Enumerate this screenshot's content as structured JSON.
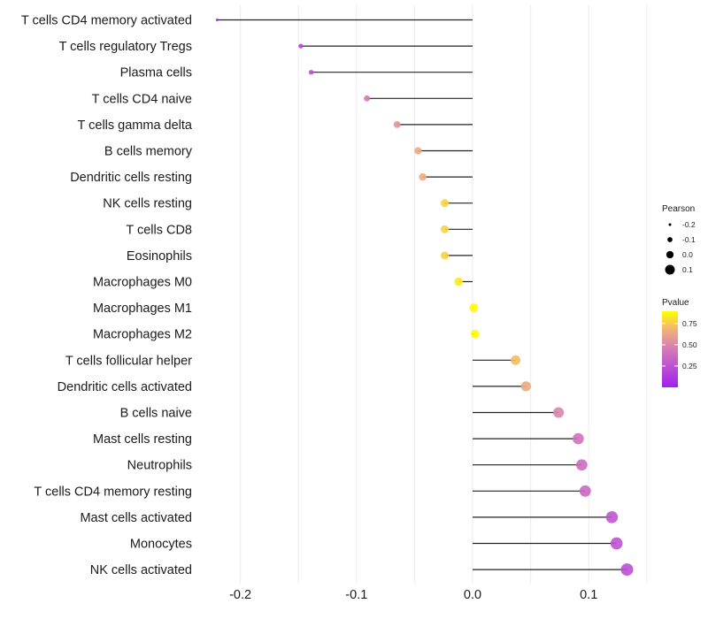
{
  "chart_data": {
    "type": "lollipop",
    "title": "",
    "xlabel": "",
    "ylabel": "",
    "xlim": [
      -0.225,
      0.15
    ],
    "x_ticks": [
      -0.2,
      -0.1,
      0.0,
      0.1
    ],
    "x_tick_labels": [
      "-0.2",
      "-0.1",
      "0.0",
      "0.1"
    ],
    "grid": true,
    "baseline": 0.0,
    "categories": [
      "T cells CD4 memory activated",
      "T cells regulatory  Tregs ",
      "Plasma cells",
      "T cells CD4 naive",
      "T cells gamma delta",
      "B cells memory",
      "Dendritic cells resting",
      "NK cells resting",
      "T cells CD8",
      "Eosinophils",
      "Macrophages M0",
      "Macrophages M1",
      "Macrophages M2",
      "T cells follicular helper",
      "Dendritic cells activated",
      "B cells naive",
      "Mast cells resting",
      "Neutrophils",
      "T cells CD4 memory resting",
      "Mast cells activated",
      "Monocytes",
      "NK cells activated"
    ],
    "series": [
      {
        "name": "Pearson",
        "values": [
          -0.22,
          -0.148,
          -0.139,
          -0.091,
          -0.065,
          -0.047,
          -0.043,
          -0.024,
          -0.024,
          -0.024,
          -0.012,
          0.001,
          0.002,
          0.037,
          0.046,
          0.074,
          0.091,
          0.094,
          0.097,
          0.12,
          0.124,
          0.133
        ]
      },
      {
        "name": "Pvalue",
        "values": [
          0.02,
          0.2,
          0.25,
          0.5,
          0.62,
          0.72,
          0.73,
          0.86,
          0.86,
          0.86,
          0.93,
          0.99,
          0.99,
          0.79,
          0.72,
          0.55,
          0.45,
          0.42,
          0.4,
          0.3,
          0.29,
          0.26
        ]
      }
    ],
    "legends": {
      "size": {
        "title": "Pearson",
        "labels": [
          "-0.2",
          "-0.1",
          "0.0",
          "0.1"
        ],
        "values": [
          -0.2,
          -0.1,
          0.0,
          0.1
        ]
      },
      "color": {
        "title": "Pvalue",
        "labels": [
          "0.75",
          "0.50",
          "0.25"
        ],
        "values": [
          0.75,
          0.5,
          0.25
        ],
        "range": [
          0.0,
          1.0
        ],
        "low_color": "#a020f0",
        "mid_color": "#d47ab8",
        "high_color": "#ffff00"
      },
      "placement": "right"
    }
  }
}
